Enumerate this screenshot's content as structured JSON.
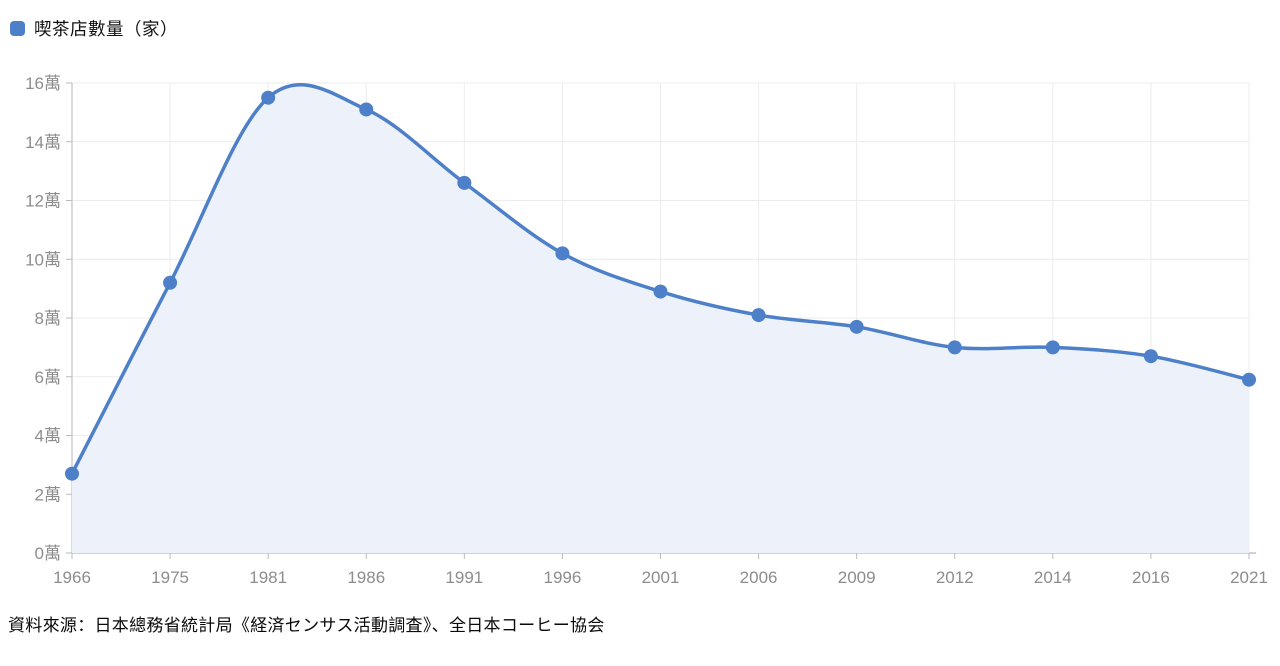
{
  "legend": {
    "label": "喫茶店數量（家）",
    "color": "#4d80c8"
  },
  "source_note": "資料來源：日本總務省統計局《経済センサス活動調査》、全日本コーヒー協会",
  "chart_data": {
    "type": "line",
    "title": "",
    "series": [
      {
        "name": "喫茶店數量（家）",
        "unit": "萬",
        "values": [
          2.7,
          9.2,
          15.5,
          15.1,
          12.6,
          10.2,
          8.9,
          8.1,
          7.7,
          7.0,
          7.0,
          6.7,
          5.9
        ]
      }
    ],
    "categories": [
      "1966",
      "1975",
      "1981",
      "1986",
      "1991",
      "1996",
      "2001",
      "2006",
      "2009",
      "2012",
      "2014",
      "2016",
      "2021"
    ],
    "xlabel": "",
    "ylabel": "",
    "ylim": [
      0,
      16
    ],
    "y_tick_step": 2,
    "y_tick_labels": [
      "0萬",
      "2萬",
      "4萬",
      "6萬",
      "8萬",
      "10萬",
      "12萬",
      "14萬",
      "16萬"
    ],
    "grid": true,
    "smooth": true,
    "area_filled": true,
    "legend_position": "top-left",
    "colors": {
      "line": "#4d80c8",
      "marker": "#4d80c8",
      "area_fill": "#edf2fa",
      "grid_line": "#ececec",
      "x_axis_line": "#a6a6a6",
      "y_axis_line": "#cdcdcd",
      "tick_mark": "#bbbbbb",
      "axis_label": "#8d8d8d"
    }
  }
}
